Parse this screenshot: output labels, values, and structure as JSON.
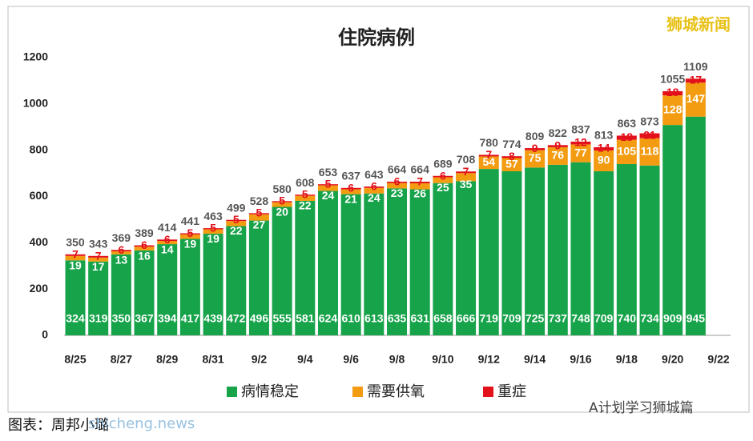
{
  "chart_data": {
    "type": "stacked-bar",
    "title": "住院病例",
    "categories": [
      "8/25",
      null,
      "8/27",
      null,
      "8/29",
      null,
      "8/31",
      null,
      "9/2",
      null,
      "9/4",
      null,
      "9/6",
      null,
      "9/8",
      null,
      "9/10",
      null,
      "9/12",
      null,
      "9/14",
      null,
      "9/16",
      null,
      "9/18",
      null,
      "9/20",
      null,
      "9/22"
    ],
    "series": [
      {
        "name": "病情稳定",
        "color": "#17a34a",
        "values": [
          324,
          319,
          350,
          367,
          394,
          417,
          439,
          472,
          496,
          555,
          581,
          624,
          610,
          613,
          635,
          631,
          658,
          666,
          719,
          709,
          725,
          737,
          748,
          709,
          740,
          734,
          909,
          945,
          null
        ]
      },
      {
        "name": "需要供氧",
        "color": "#f39c12",
        "values": [
          19,
          17,
          13,
          16,
          14,
          19,
          19,
          22,
          27,
          20,
          22,
          24,
          21,
          24,
          23,
          26,
          25,
          35,
          54,
          57,
          75,
          76,
          77,
          90,
          105,
          118,
          128,
          147,
          null
        ]
      },
      {
        "name": "重症",
        "color": "#e3111b",
        "values": [
          7,
          7,
          6,
          6,
          6,
          5,
          5,
          5,
          5,
          5,
          5,
          5,
          6,
          6,
          6,
          7,
          6,
          7,
          7,
          8,
          9,
          9,
          12,
          14,
          18,
          21,
          18,
          17,
          null
        ]
      }
    ],
    "totals": [
      350,
      343,
      369,
      389,
      414,
      441,
      463,
      499,
      528,
      580,
      608,
      653,
      637,
      643,
      664,
      664,
      689,
      708,
      780,
      774,
      809,
      822,
      837,
      813,
      863,
      873,
      1055,
      1109,
      null
    ],
    "ylim": [
      0,
      1200
    ],
    "yticks": [
      0,
      200,
      400,
      600,
      800,
      1000,
      1200
    ]
  },
  "watermark": "狮城新闻",
  "footer": "图表：周邦小璐",
  "source": "A计划学习狮城篇",
  "site": "shicheng.news"
}
